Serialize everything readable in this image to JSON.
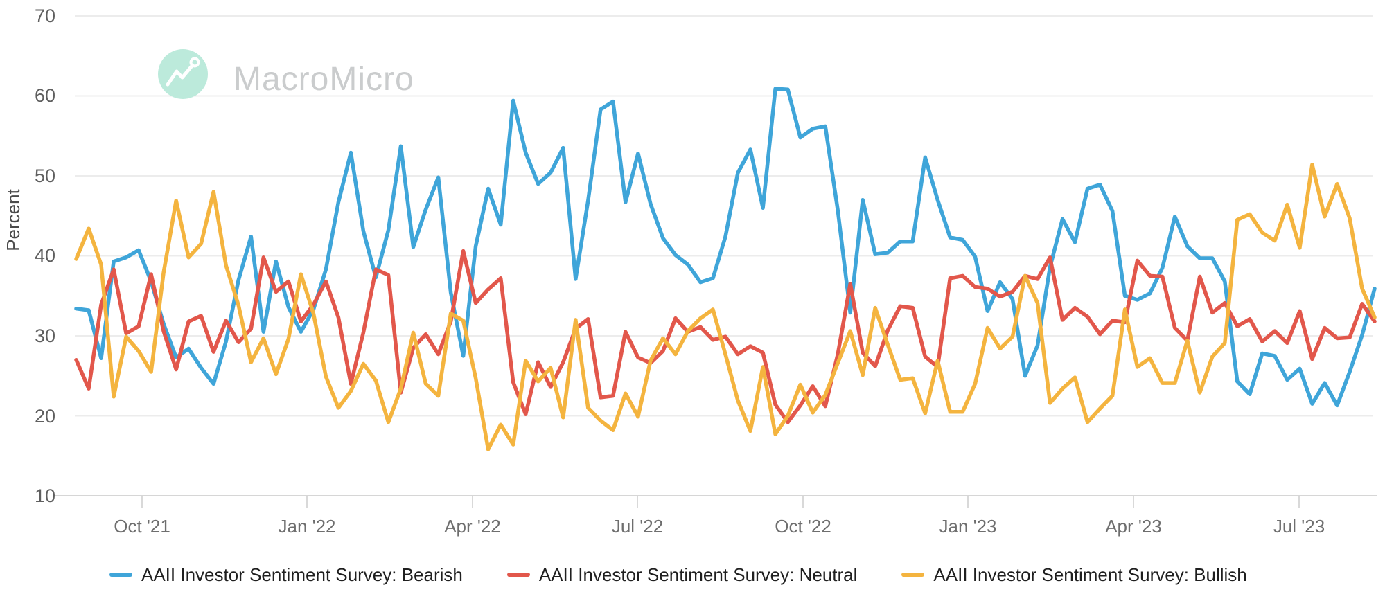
{
  "watermark": {
    "text": "MacroMicro"
  },
  "legend": {
    "items": [
      {
        "key": "bearish",
        "label": "AAII Investor Sentiment Survey: Bearish",
        "color": "#3fa5d9"
      },
      {
        "key": "neutral",
        "label": "AAII Investor Sentiment Survey: Neutral",
        "color": "#e2574b"
      },
      {
        "key": "bullish",
        "label": "AAII Investor Sentiment Survey: Bullish",
        "color": "#f4b43f"
      }
    ]
  },
  "chart_data": {
    "type": "line",
    "title": "AAII Investor Sentiment Survey",
    "xlabel": "",
    "ylabel": "Percent",
    "ylim": [
      10,
      70
    ],
    "grid": "horizontal",
    "legend_position": "bottom",
    "y_ticks": [
      70,
      60,
      50,
      40,
      30,
      20,
      10
    ],
    "y_tick_labels": [
      "70",
      "60",
      "50",
      "40",
      "30",
      "20",
      "10"
    ],
    "x_tick_labels": [
      "Oct '21",
      "Jan '22",
      "Apr '22",
      "Jul '22",
      "Oct '22",
      "Jan '23",
      "Apr '23",
      "Jul '23"
    ],
    "x": [
      "2021-08-26",
      "2021-09-02",
      "2021-09-09",
      "2021-09-16",
      "2021-09-23",
      "2021-09-30",
      "2021-10-07",
      "2021-10-14",
      "2021-10-21",
      "2021-10-28",
      "2021-11-04",
      "2021-11-11",
      "2021-11-18",
      "2021-11-25",
      "2021-12-02",
      "2021-12-09",
      "2021-12-16",
      "2021-12-23",
      "2021-12-30",
      "2022-01-06",
      "2022-01-13",
      "2022-01-20",
      "2022-01-27",
      "2022-02-03",
      "2022-02-10",
      "2022-02-17",
      "2022-02-24",
      "2022-03-03",
      "2022-03-10",
      "2022-03-17",
      "2022-03-24",
      "2022-03-31",
      "2022-04-07",
      "2022-04-14",
      "2022-04-21",
      "2022-04-28",
      "2022-05-05",
      "2022-05-12",
      "2022-05-19",
      "2022-05-26",
      "2022-06-02",
      "2022-06-09",
      "2022-06-16",
      "2022-06-23",
      "2022-06-30",
      "2022-07-07",
      "2022-07-14",
      "2022-07-21",
      "2022-07-28",
      "2022-08-04",
      "2022-08-11",
      "2022-08-18",
      "2022-08-25",
      "2022-09-01",
      "2022-09-08",
      "2022-09-15",
      "2022-09-22",
      "2022-09-29",
      "2022-10-06",
      "2022-10-13",
      "2022-10-20",
      "2022-10-27",
      "2022-11-03",
      "2022-11-10",
      "2022-11-17",
      "2022-11-24",
      "2022-12-01",
      "2022-12-08",
      "2022-12-15",
      "2022-12-22",
      "2022-12-29",
      "2023-01-05",
      "2023-01-12",
      "2023-01-19",
      "2023-01-26",
      "2023-02-02",
      "2023-02-09",
      "2023-02-16",
      "2023-02-23",
      "2023-03-02",
      "2023-03-09",
      "2023-03-16",
      "2023-03-23",
      "2023-03-30",
      "2023-04-06",
      "2023-04-13",
      "2023-04-20",
      "2023-04-27",
      "2023-05-04",
      "2023-05-11",
      "2023-05-18",
      "2023-05-25",
      "2023-06-01",
      "2023-06-08",
      "2023-06-15",
      "2023-06-22",
      "2023-06-29",
      "2023-07-06",
      "2023-07-13",
      "2023-07-20",
      "2023-07-27",
      "2023-08-03",
      "2023-08-10",
      "2023-08-17",
      "2023-08-24"
    ],
    "series": [
      {
        "key": "bearish",
        "name": "AAII Investor Sentiment Survey: Bearish",
        "color": "#3fa5d9",
        "values": [
          33.4,
          33.2,
          27.2,
          39.3,
          39.8,
          40.7,
          36.8,
          31.5,
          27.3,
          28.4,
          26.0,
          24.0,
          29.3,
          37.0,
          42.4,
          30.5,
          39.3,
          33.6,
          30.5,
          33.3,
          38.3,
          46.7,
          52.9,
          43.1,
          37.3,
          43.2,
          53.7,
          41.1,
          45.8,
          49.8,
          35.4,
          27.5,
          41.2,
          48.4,
          43.9,
          59.4,
          52.9,
          49.0,
          50.4,
          53.5,
          37.1,
          46.9,
          58.3,
          59.3,
          46.7,
          52.8,
          46.5,
          42.2,
          40.1,
          38.9,
          36.7,
          37.2,
          42.4,
          50.4,
          53.3,
          46.0,
          60.9,
          60.8,
          54.8,
          55.9,
          56.2,
          45.7,
          32.9,
          47.0,
          40.2,
          40.4,
          41.8,
          41.8,
          52.3,
          47.0,
          42.3,
          42.0,
          39.9,
          33.1,
          36.7,
          34.6,
          25.0,
          28.8,
          38.6,
          44.6,
          41.7,
          48.4,
          48.9,
          45.6,
          35.0,
          34.5,
          35.3,
          38.5,
          44.9,
          41.2,
          39.7,
          39.7,
          36.8,
          24.3,
          22.7,
          27.8,
          27.5,
          24.5,
          25.9,
          21.5,
          24.1,
          21.3,
          25.5,
          30.1,
          35.9
        ]
      },
      {
        "key": "neutral",
        "name": "AAII Investor Sentiment Survey: Neutral",
        "color": "#e2574b",
        "values": [
          27.0,
          23.4,
          33.9,
          38.3,
          30.3,
          31.2,
          37.7,
          30.6,
          25.8,
          31.8,
          32.5,
          28.0,
          31.9,
          29.2,
          30.9,
          39.8,
          35.5,
          36.8,
          31.8,
          33.9,
          36.8,
          32.3,
          24.0,
          30.4,
          38.3,
          37.6,
          22.9,
          28.5,
          30.2,
          27.7,
          31.8,
          40.6,
          34.1,
          35.8,
          37.2,
          24.2,
          20.2,
          26.7,
          23.6,
          26.7,
          30.9,
          32.1,
          22.3,
          22.5,
          30.5,
          27.3,
          26.6,
          28.1,
          32.2,
          30.5,
          31.1,
          29.5,
          29.9,
          27.7,
          28.7,
          27.9,
          21.4,
          19.2,
          21.3,
          23.7,
          21.2,
          27.7,
          36.5,
          27.9,
          26.2,
          30.7,
          33.7,
          33.5,
          27.4,
          26.1,
          37.2,
          37.5,
          36.1,
          35.9,
          34.9,
          35.5,
          37.5,
          37.1,
          39.8,
          32.0,
          33.5,
          32.4,
          30.2,
          31.9,
          31.7,
          39.4,
          37.5,
          37.4,
          31.0,
          29.4,
          37.4,
          32.9,
          34.1,
          31.2,
          32.1,
          29.3,
          30.6,
          29.1,
          33.1,
          27.1,
          31.0,
          29.7,
          29.8,
          34.0,
          31.8
        ]
      },
      {
        "key": "bullish",
        "name": "AAII Investor Sentiment Survey: Bullish",
        "color": "#f4b43f",
        "values": [
          39.6,
          43.4,
          38.9,
          22.4,
          29.9,
          28.1,
          25.5,
          37.9,
          46.9,
          39.8,
          41.5,
          48.0,
          38.8,
          33.8,
          26.7,
          29.7,
          25.2,
          29.6,
          37.7,
          32.8,
          24.9,
          21.0,
          23.1,
          26.5,
          24.4,
          19.2,
          23.4,
          30.4,
          24.0,
          22.5,
          32.8,
          31.9,
          24.7,
          15.8,
          18.9,
          16.4,
          26.9,
          24.3,
          26.0,
          19.8,
          32.0,
          21.0,
          19.4,
          18.2,
          22.8,
          19.9,
          26.9,
          29.7,
          27.7,
          30.6,
          32.2,
          33.3,
          27.7,
          21.9,
          18.1,
          26.1,
          17.7,
          20.0,
          23.9,
          20.4,
          22.6,
          26.6,
          30.6,
          25.1,
          33.5,
          28.9,
          24.5,
          24.7,
          20.3,
          26.9,
          20.5,
          20.5,
          24.0,
          31.0,
          28.4,
          29.9,
          37.5,
          34.1,
          21.6,
          23.4,
          24.8,
          19.2,
          20.9,
          22.5,
          33.3,
          26.1,
          27.2,
          24.1,
          24.1,
          29.4,
          22.9,
          27.4,
          29.1,
          44.5,
          45.2,
          42.9,
          41.9,
          46.4,
          41.0,
          51.4,
          44.9,
          49.0,
          44.7,
          35.9,
          32.3
        ]
      }
    ]
  }
}
